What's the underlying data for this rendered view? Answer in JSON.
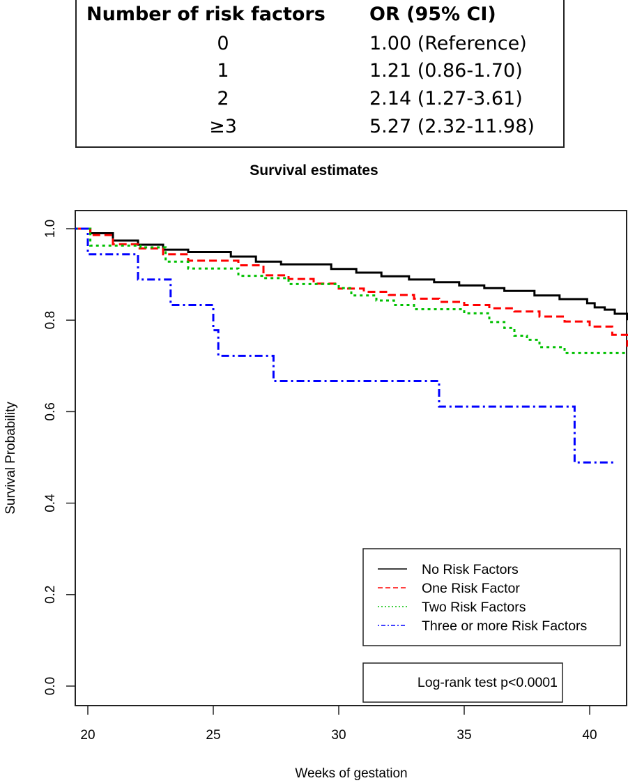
{
  "or_table": {
    "headers": [
      "Number of risk factors",
      "OR (95% CI)"
    ],
    "rows": [
      {
        "factors": "0",
        "or": "1.00 (Reference)"
      },
      {
        "factors": "1",
        "or": "1.21 (0.86-1.70)"
      },
      {
        "factors": "2",
        "or": "2.14 (1.27-3.61)"
      },
      {
        "factors": "≥3",
        "or": "5.27 (2.32-11.98)"
      }
    ]
  },
  "chart_data": {
    "type": "line",
    "subtype": "kaplan-meier step",
    "title": "Survival estimates",
    "xlabel": "Weeks of gestation",
    "ylabel": "Survival Probability",
    "xlim": [
      19.5,
      41.5
    ],
    "ylim": [
      -0.04,
      1.04
    ],
    "xticks": [
      20,
      25,
      30,
      35,
      40
    ],
    "yticks": [
      0.0,
      0.2,
      0.4,
      0.6,
      0.8,
      1.0
    ],
    "ytick_labels": [
      "0.0",
      "0.2",
      "0.4",
      "0.6",
      "0.8",
      "1.0"
    ],
    "grid": false,
    "legend_position": "bottom-right",
    "annotation": "Log-rank test p<0.0001",
    "series": [
      {
        "name": "No Risk Factors",
        "color": "#000000",
        "dash": "solid",
        "x": [
          19.5,
          20.0,
          20.1,
          21.0,
          22.0,
          23.0,
          24.0,
          25.7,
          26.7,
          27.7,
          29.7,
          30.7,
          31.7,
          32.8,
          33.8,
          34.8,
          35.8,
          36.6,
          37.8,
          38.8,
          39.9,
          40.2,
          40.6,
          41.0,
          41.5
        ],
        "y": [
          1.0,
          1.0,
          0.99,
          0.974,
          0.965,
          0.954,
          0.949,
          0.939,
          0.928,
          0.922,
          0.912,
          0.904,
          0.896,
          0.889,
          0.883,
          0.876,
          0.87,
          0.864,
          0.854,
          0.846,
          0.837,
          0.828,
          0.823,
          0.814,
          0.8
        ]
      },
      {
        "name": "One Risk Factor",
        "color": "#ff0000",
        "dash": "dashed",
        "x": [
          19.5,
          20.0,
          20.1,
          21.0,
          22.0,
          23.0,
          24.0,
          26.0,
          27.0,
          28.0,
          29.0,
          30.0,
          31.0,
          32.0,
          33.0,
          34.0,
          35.0,
          36.0,
          37.0,
          38.0,
          39.0,
          40.0,
          40.9,
          41.5
        ],
        "y": [
          1.0,
          1.0,
          0.986,
          0.966,
          0.957,
          0.944,
          0.93,
          0.92,
          0.898,
          0.89,
          0.88,
          0.869,
          0.862,
          0.855,
          0.847,
          0.84,
          0.833,
          0.826,
          0.819,
          0.808,
          0.797,
          0.786,
          0.768,
          0.742
        ]
      },
      {
        "name": "Two Risk Factors",
        "color": "#00c000",
        "dash": "dotted",
        "x": [
          19.5,
          20.0,
          20.1,
          22.1,
          23.1,
          24.0,
          26.0,
          27.0,
          28.0,
          30.0,
          30.5,
          31.5,
          32.2,
          33.0,
          35.0,
          36.0,
          36.6,
          37.0,
          37.5,
          38.0,
          39.0,
          41.5
        ],
        "y": [
          1.0,
          1.0,
          0.963,
          0.959,
          0.928,
          0.913,
          0.897,
          0.892,
          0.879,
          0.87,
          0.854,
          0.843,
          0.833,
          0.824,
          0.815,
          0.796,
          0.783,
          0.766,
          0.757,
          0.741,
          0.728,
          0.728
        ]
      },
      {
        "name": "Three or more Risk Factors",
        "color": "#0000ff",
        "dash": "dotdash",
        "x": [
          19.5,
          20.0,
          20.0,
          22.0,
          23.3,
          25.0,
          25.2,
          27.4,
          34.0,
          39.4,
          41.0
        ],
        "y": [
          1.0,
          1.0,
          0.944,
          0.889,
          0.833,
          0.778,
          0.722,
          0.667,
          0.611,
          0.489,
          0.489
        ]
      }
    ]
  }
}
